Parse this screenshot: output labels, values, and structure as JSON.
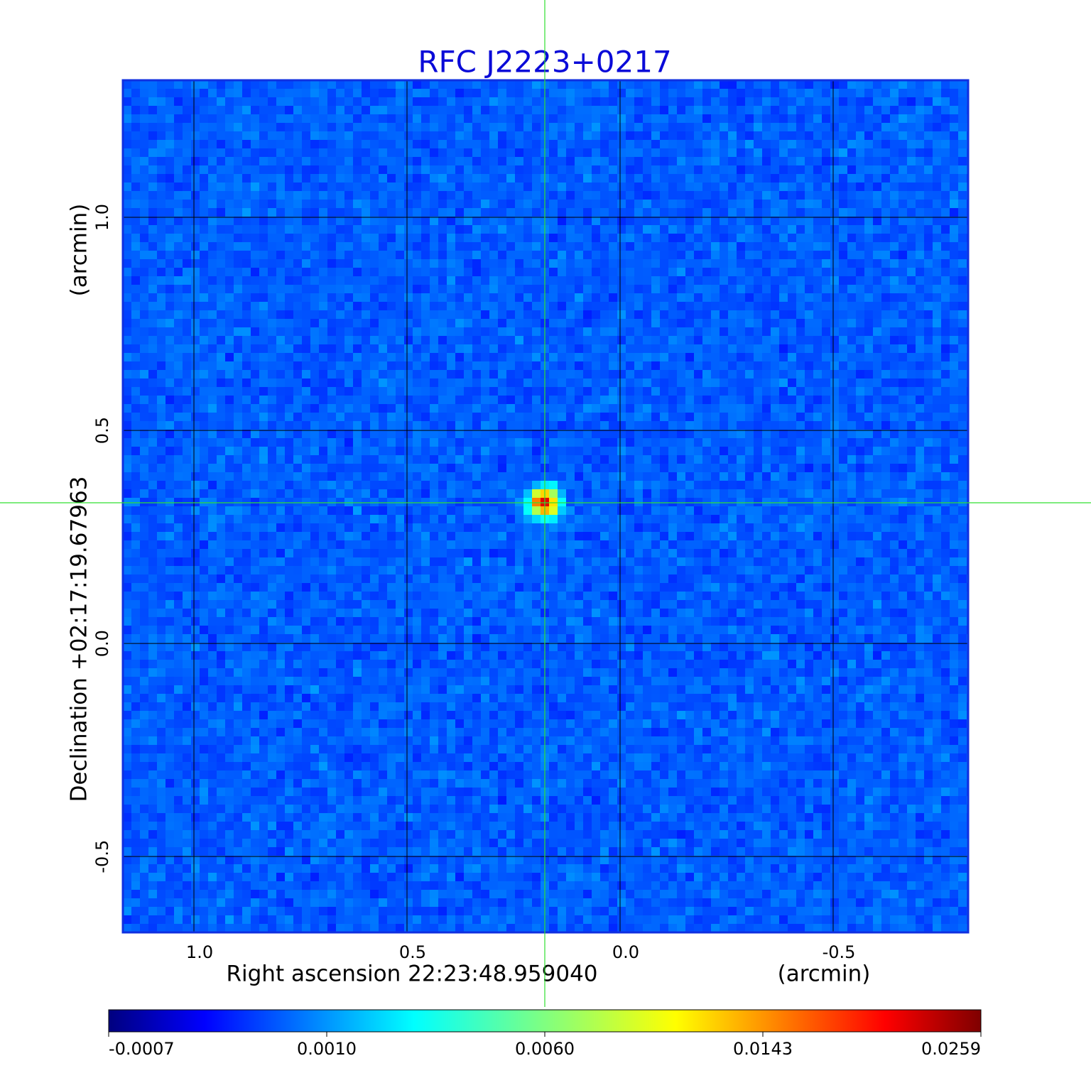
{
  "title": "RFC J2223+0217",
  "x_axis": {
    "label": "Right ascension  22:23:48.959040",
    "unit": "(arcmin)",
    "lim": [
      1.1667,
      -0.8167
    ],
    "ticks": [
      {
        "value": 1,
        "label": "1.0"
      },
      0.5,
      {
        "value": 0,
        "label": "0.0"
      },
      -0.5
    ]
  },
  "y_axis": {
    "label": "Declination  +02:17:19.67963",
    "unit": "(arcmin)",
    "lim": [
      -0.678,
      1.3217
    ],
    "ticks": [
      {
        "value": 1,
        "label": "1.0"
      },
      0.5,
      {
        "value": 0,
        "label": "0.0"
      },
      -0.5
    ]
  },
  "colorbar": {
    "ticks": [
      -0.0007,
      {
        "value": 0.001,
        "label": "0.0010"
      },
      {
        "value": 0.006,
        "label": "0.0060"
      },
      0.0143,
      0.0259
    ]
  }
}
